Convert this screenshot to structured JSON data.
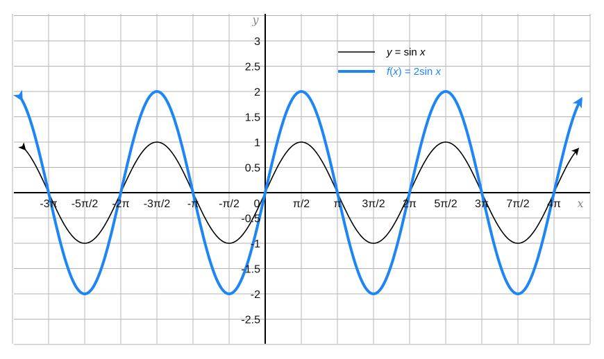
{
  "chart_data": {
    "type": "line",
    "title": "",
    "xlabel": "x",
    "ylabel": "y",
    "xlim_pi": [
      -3.5,
      4.5
    ],
    "ylim": [
      -3,
      3.5
    ],
    "grid": true,
    "legend_placement": "top-center",
    "x_ticks": [
      {
        "pi": -3,
        "label": "-3π"
      },
      {
        "pi": -2.5,
        "label": "-5π/2"
      },
      {
        "pi": -2,
        "label": "-2π"
      },
      {
        "pi": -1.5,
        "label": "-3π/2"
      },
      {
        "pi": -1,
        "label": "-π"
      },
      {
        "pi": -0.5,
        "label": "-π/2"
      },
      {
        "pi": 0,
        "label": "0"
      },
      {
        "pi": 0.5,
        "label": "π/2"
      },
      {
        "pi": 1,
        "label": "π"
      },
      {
        "pi": 1.5,
        "label": "3π/2"
      },
      {
        "pi": 2,
        "label": "2π"
      },
      {
        "pi": 2.5,
        "label": "5π/2"
      },
      {
        "pi": 3,
        "label": "3π"
      },
      {
        "pi": 3.5,
        "label": "7π/2"
      },
      {
        "pi": 4,
        "label": "4π"
      }
    ],
    "y_ticks": [
      {
        "v": 3,
        "label": "3"
      },
      {
        "v": 2.5,
        "label": "2.5"
      },
      {
        "v": 2,
        "label": "2"
      },
      {
        "v": 1.5,
        "label": "1.5"
      },
      {
        "v": 1,
        "label": "1"
      },
      {
        "v": 0.5,
        "label": "0.5"
      },
      {
        "v": -0.5,
        "label": "-0.5"
      },
      {
        "v": -1,
        "label": "-1"
      },
      {
        "v": -1.5,
        "label": "-1.5"
      },
      {
        "v": -2,
        "label": "-2"
      },
      {
        "v": -2.5,
        "label": "-2.5"
      }
    ],
    "series": [
      {
        "name": "y = sin x",
        "legend_parts": [
          [
            "y",
            true
          ],
          [
            " = sin ",
            false
          ],
          [
            "x",
            true
          ]
        ],
        "amplitude": 1,
        "color": "#000000",
        "x_range_pi": [
          -3.33,
          4.33
        ],
        "arrows": true
      },
      {
        "name": "f(x) = 2sin x",
        "legend_parts": [
          [
            "f",
            true
          ],
          [
            "(",
            false
          ],
          [
            "x",
            true
          ],
          [
            ") = 2sin ",
            false
          ],
          [
            "x",
            true
          ]
        ],
        "amplitude": 2,
        "color": "#1E86F2",
        "x_range_pi": [
          -3.375,
          4.375
        ],
        "arrows": true
      }
    ],
    "colors": {
      "grid": "#b3b3b3",
      "axis": "#000000",
      "tick_label": "#111111",
      "axis_name": "#888888"
    }
  }
}
